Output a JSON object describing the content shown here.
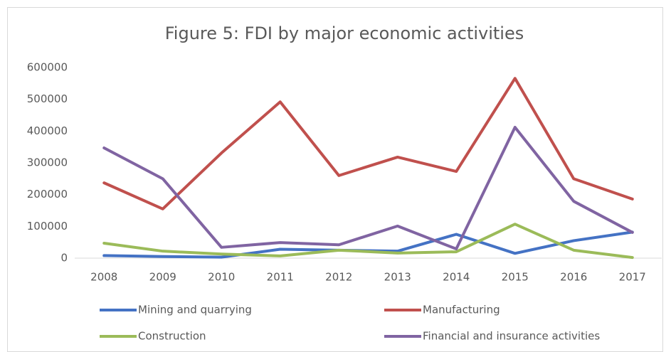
{
  "chart_data": {
    "type": "line",
    "title": "Figure 5: FDI by major economic activities",
    "categories": [
      "2008",
      "2009",
      "2010",
      "2011",
      "2012",
      "2013",
      "2014",
      "2015",
      "2016",
      "2017"
    ],
    "series": [
      {
        "name": "Mining and quarrying",
        "color": "#4472c4",
        "values": [
          8000,
          5000,
          3000,
          28000,
          25000,
          22000,
          75000,
          15000,
          55000,
          82000
        ]
      },
      {
        "name": "Manufacturing",
        "color": "#c0504d",
        "values": [
          237000,
          155000,
          331000,
          492000,
          260000,
          318000,
          273000,
          566000,
          250000,
          186000
        ]
      },
      {
        "name": "Construction",
        "color": "#9bbb59",
        "values": [
          47000,
          22000,
          13000,
          7000,
          25000,
          16000,
          20000,
          107000,
          25000,
          2000
        ]
      },
      {
        "name": "Financial and insurance activities",
        "color": "#8064a2",
        "values": [
          347000,
          250000,
          34000,
          49000,
          42000,
          101000,
          29000,
          412000,
          179000,
          81000
        ]
      }
    ],
    "ylim": [
      0,
      600000
    ],
    "yticks": [
      0,
      100000,
      200000,
      300000,
      400000,
      500000,
      600000
    ],
    "grid": false,
    "legend": "bottom"
  }
}
